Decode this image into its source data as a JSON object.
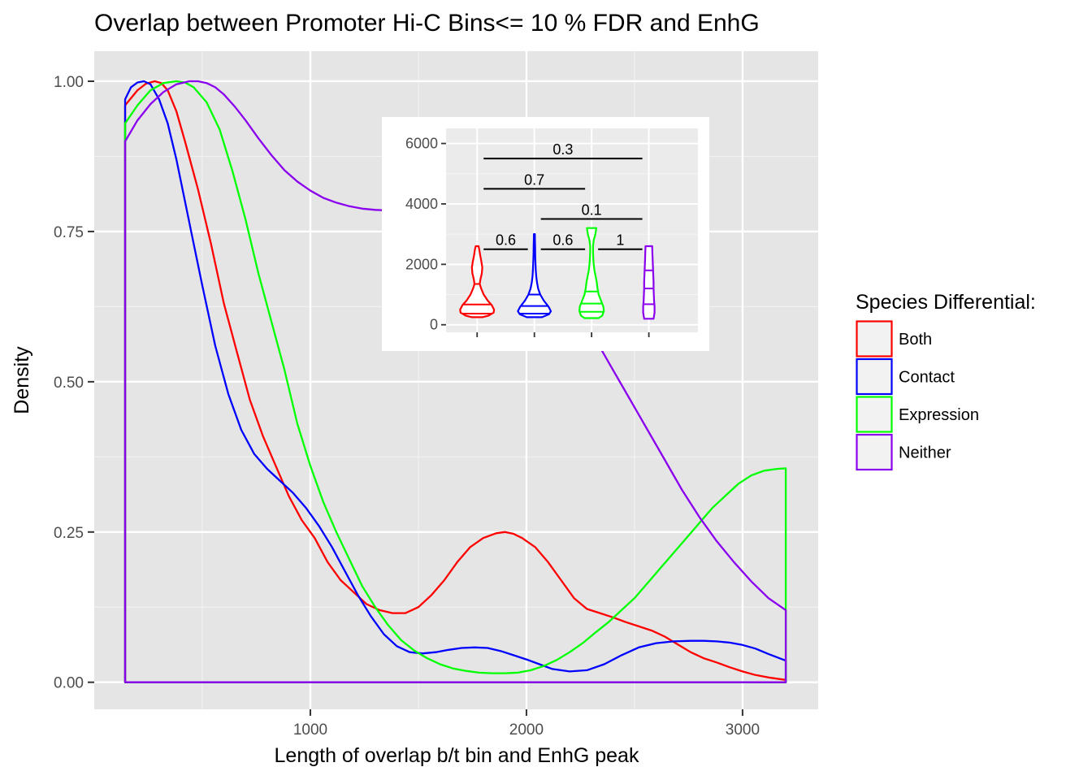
{
  "chart_data": {
    "type": "line",
    "title": "Overlap between Promoter Hi-C Bins<= 10 % FDR and EnhG",
    "xlabel": "Length of overlap b/t bin and EnhG peak",
    "ylabel": "Density",
    "xlim": [
      0,
      3350
    ],
    "ylim": [
      -0.045,
      1.05
    ],
    "x_ticks": [
      1000,
      2000,
      3000
    ],
    "x_tick_labels": [
      "1000",
      "2000",
      "3000"
    ],
    "y_ticks": [
      0,
      0.25,
      0.5,
      0.75,
      1.0
    ],
    "y_tick_labels": [
      "0.00",
      "0.25",
      "0.50",
      "0.75",
      "1.00"
    ],
    "grid": true,
    "legend": {
      "title": "Species Differential:",
      "position": "right",
      "entries": [
        {
          "label": "Both",
          "color": "#ff0000"
        },
        {
          "label": "Contact",
          "color": "#0000ff"
        },
        {
          "label": "Expression",
          "color": "#00ff00"
        },
        {
          "label": "Neither",
          "color": "#8a00ee"
        }
      ]
    },
    "series": [
      {
        "name": "Both",
        "color": "#ff0000",
        "x": [
          143,
          200,
          240,
          280,
          310,
          340,
          380,
          420,
          480,
          540,
          600,
          660,
          720,
          780,
          840,
          900,
          960,
          1020,
          1080,
          1140,
          1200,
          1260,
          1320,
          1380,
          1440,
          1500,
          1560,
          1620,
          1680,
          1740,
          1800,
          1860,
          1900,
          1940,
          1980,
          2040,
          2100,
          2160,
          2220,
          2280,
          2340,
          2400,
          2460,
          2520,
          2580,
          2640,
          2700,
          2760,
          2820,
          2880,
          2940,
          3000,
          3060,
          3120,
          3200
        ],
        "y": [
          0.96,
          0.985,
          0.996,
          1.0,
          0.997,
          0.985,
          0.95,
          0.9,
          0.82,
          0.73,
          0.63,
          0.55,
          0.47,
          0.41,
          0.36,
          0.31,
          0.27,
          0.24,
          0.2,
          0.17,
          0.15,
          0.13,
          0.12,
          0.115,
          0.115,
          0.125,
          0.145,
          0.17,
          0.2,
          0.225,
          0.24,
          0.248,
          0.25,
          0.247,
          0.24,
          0.225,
          0.2,
          0.17,
          0.14,
          0.122,
          0.115,
          0.108,
          0.1,
          0.093,
          0.086,
          0.076,
          0.063,
          0.05,
          0.04,
          0.033,
          0.025,
          0.018,
          0.012,
          0.008,
          0.004
        ]
      },
      {
        "name": "Contact",
        "color": "#0000ff",
        "x": [
          143,
          170,
          200,
          230,
          260,
          300,
          340,
          380,
          420,
          460,
          500,
          560,
          620,
          680,
          740,
          800,
          860,
          920,
          980,
          1040,
          1100,
          1160,
          1220,
          1280,
          1340,
          1400,
          1460,
          1520,
          1580,
          1640,
          1700,
          1760,
          1820,
          1880,
          1940,
          2000,
          2060,
          2120,
          2200,
          2280,
          2360,
          2440,
          2520,
          2600,
          2680,
          2760,
          2820,
          2880,
          2940,
          3000,
          3060,
          3120,
          3200
        ],
        "y": [
          0.97,
          0.99,
          0.998,
          1.0,
          0.995,
          0.97,
          0.93,
          0.87,
          0.8,
          0.73,
          0.66,
          0.56,
          0.48,
          0.42,
          0.38,
          0.355,
          0.335,
          0.315,
          0.29,
          0.26,
          0.225,
          0.185,
          0.145,
          0.11,
          0.08,
          0.06,
          0.05,
          0.048,
          0.05,
          0.054,
          0.057,
          0.058,
          0.057,
          0.052,
          0.045,
          0.038,
          0.03,
          0.022,
          0.018,
          0.02,
          0.03,
          0.045,
          0.058,
          0.065,
          0.068,
          0.069,
          0.069,
          0.068,
          0.066,
          0.062,
          0.056,
          0.047,
          0.036
        ]
      },
      {
        "name": "Expression",
        "color": "#00ff00",
        "x": [
          143,
          200,
          260,
          320,
          380,
          420,
          460,
          520,
          580,
          640,
          700,
          760,
          820,
          880,
          940,
          1000,
          1060,
          1120,
          1180,
          1240,
          1300,
          1360,
          1420,
          1480,
          1540,
          1600,
          1660,
          1720,
          1780,
          1840,
          1900,
          1960,
          2020,
          2080,
          2140,
          2200,
          2260,
          2320,
          2380,
          2440,
          2500,
          2560,
          2620,
          2680,
          2740,
          2800,
          2860,
          2920,
          2980,
          3040,
          3100,
          3160,
          3200
        ],
        "y": [
          0.93,
          0.96,
          0.985,
          0.997,
          1.0,
          0.998,
          0.99,
          0.965,
          0.92,
          0.85,
          0.77,
          0.68,
          0.6,
          0.52,
          0.43,
          0.36,
          0.3,
          0.25,
          0.205,
          0.16,
          0.125,
          0.095,
          0.07,
          0.053,
          0.04,
          0.03,
          0.023,
          0.019,
          0.016,
          0.015,
          0.015,
          0.016,
          0.02,
          0.027,
          0.037,
          0.05,
          0.065,
          0.083,
          0.1,
          0.12,
          0.14,
          0.165,
          0.19,
          0.215,
          0.24,
          0.265,
          0.29,
          0.31,
          0.33,
          0.344,
          0.352,
          0.355,
          0.356
        ]
      },
      {
        "name": "Neither",
        "color": "#8a00ee",
        "x": [
          143,
          200,
          260,
          320,
          380,
          440,
          480,
          520,
          560,
          600,
          650,
          700,
          760,
          820,
          880,
          940,
          1000,
          1060,
          1120,
          1180,
          1240,
          1300,
          1360,
          1420,
          1480,
          1540,
          1600,
          1680,
          1760,
          1840,
          1920,
          2000,
          2080,
          2160,
          2240,
          2320,
          2400,
          2480,
          2560,
          2640,
          2720,
          2800,
          2880,
          2960,
          3040,
          3120,
          3200
        ],
        "y": [
          0.9,
          0.935,
          0.962,
          0.982,
          0.995,
          1.0,
          1.0,
          0.997,
          0.99,
          0.978,
          0.958,
          0.935,
          0.905,
          0.877,
          0.852,
          0.833,
          0.818,
          0.806,
          0.798,
          0.792,
          0.788,
          0.786,
          0.785,
          0.785,
          0.785,
          0.785,
          0.785,
          0.783,
          0.78,
          0.775,
          0.77,
          0.755,
          0.72,
          0.67,
          0.62,
          0.57,
          0.52,
          0.47,
          0.42,
          0.37,
          0.32,
          0.275,
          0.235,
          0.2,
          0.168,
          0.14,
          0.12
        ]
      }
    ]
  },
  "inset": {
    "type": "violin",
    "ylim": [
      -250,
      6500
    ],
    "y_ticks": [
      0,
      2000,
      4000,
      6000
    ],
    "y_tick_labels": [
      "0",
      "2000",
      "4000",
      "6000"
    ],
    "groups": [
      {
        "name": "Both",
        "color": "#ff0000",
        "min": 250,
        "max": 2600,
        "quantiles": [
          370,
          670,
          1350
        ],
        "profile": [
          [
            250,
            0.22
          ],
          [
            300,
            0.48
          ],
          [
            400,
            0.7
          ],
          [
            500,
            0.72
          ],
          [
            650,
            0.62
          ],
          [
            800,
            0.45
          ],
          [
            1000,
            0.28
          ],
          [
            1200,
            0.17
          ],
          [
            1350,
            0.11
          ],
          [
            1500,
            0.14
          ],
          [
            1700,
            0.2
          ],
          [
            1900,
            0.22
          ],
          [
            2100,
            0.18
          ],
          [
            2300,
            0.13
          ],
          [
            2500,
            0.09
          ],
          [
            2600,
            0.06
          ]
        ]
      },
      {
        "name": "Contact",
        "color": "#0000ff",
        "min": 250,
        "max": 3000,
        "quantiles": [
          370,
          620,
          1000
        ],
        "profile": [
          [
            250,
            0.32
          ],
          [
            350,
            0.62
          ],
          [
            450,
            0.7
          ],
          [
            600,
            0.6
          ],
          [
            800,
            0.4
          ],
          [
            1000,
            0.25
          ],
          [
            1200,
            0.16
          ],
          [
            1400,
            0.11
          ],
          [
            1600,
            0.08
          ],
          [
            1800,
            0.06
          ],
          [
            2000,
            0.05
          ],
          [
            2200,
            0.04
          ],
          [
            2400,
            0.035
          ],
          [
            2600,
            0.03
          ],
          [
            2800,
            0.025
          ],
          [
            3000,
            0.02
          ]
        ]
      },
      {
        "name": "Expression",
        "color": "#00ff00",
        "min": 220,
        "max": 3200,
        "quantiles": [
          430,
          700,
          1100
        ],
        "profile": [
          [
            220,
            0.3
          ],
          [
            300,
            0.45
          ],
          [
            450,
            0.52
          ],
          [
            600,
            0.5
          ],
          [
            800,
            0.4
          ],
          [
            1000,
            0.3
          ],
          [
            1200,
            0.25
          ],
          [
            1400,
            0.22
          ],
          [
            1600,
            0.17
          ],
          [
            1800,
            0.12
          ],
          [
            2000,
            0.09
          ],
          [
            2200,
            0.07
          ],
          [
            2400,
            0.06
          ],
          [
            2600,
            0.06
          ],
          [
            2800,
            0.09
          ],
          [
            3000,
            0.16
          ],
          [
            3200,
            0.2
          ]
        ]
      },
      {
        "name": "Neither",
        "color": "#8a00ee",
        "min": 200,
        "max": 2600,
        "quantiles": [
          680,
          1200,
          1800
        ],
        "profile": [
          [
            200,
            0.2
          ],
          [
            400,
            0.24
          ],
          [
            600,
            0.24
          ],
          [
            800,
            0.22
          ],
          [
            1000,
            0.21
          ],
          [
            1200,
            0.2
          ],
          [
            1400,
            0.2
          ],
          [
            1600,
            0.19
          ],
          [
            1800,
            0.18
          ],
          [
            2000,
            0.17
          ],
          [
            2200,
            0.16
          ],
          [
            2400,
            0.15
          ],
          [
            2600,
            0.14
          ]
        ]
      }
    ],
    "comparisons": [
      {
        "from": 0,
        "to": 1,
        "y": 2500,
        "label": "0.6"
      },
      {
        "from": 1,
        "to": 2,
        "y": 2500,
        "label": "0.6"
      },
      {
        "from": 2,
        "to": 3,
        "y": 2500,
        "label": "1"
      },
      {
        "from": 1,
        "to": 3,
        "y": 3500,
        "label": "0.1"
      },
      {
        "from": 0,
        "to": 2,
        "y": 4500,
        "label": "0.7"
      },
      {
        "from": 0,
        "to": 3,
        "y": 5500,
        "label": "0.3"
      }
    ]
  }
}
